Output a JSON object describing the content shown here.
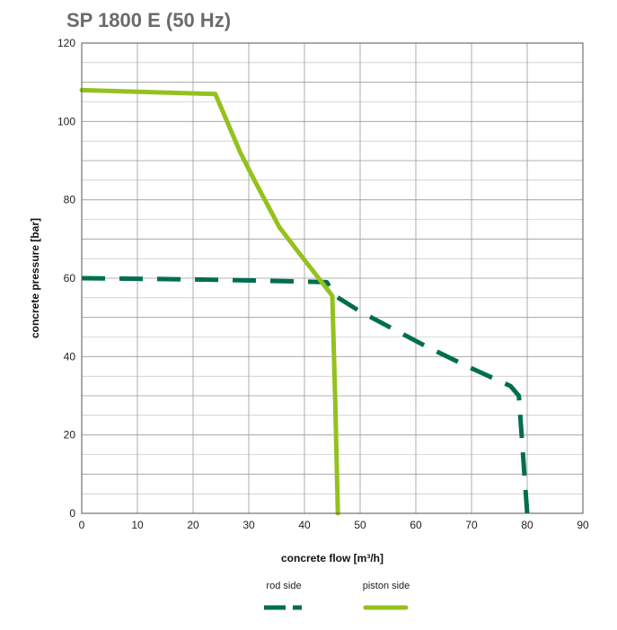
{
  "chart_data": {
    "type": "line",
    "title": "SP 1800 E (50 Hz)",
    "xlabel": "concrete flow [m³/h]",
    "ylabel": "concrete pressure [bar]",
    "xlim": [
      0,
      90
    ],
    "ylim": [
      0,
      120
    ],
    "x_ticks": [
      0,
      10,
      20,
      30,
      40,
      50,
      60,
      70,
      80,
      90
    ],
    "y_ticks": [
      0,
      20,
      40,
      60,
      80,
      100,
      120
    ],
    "grid": true,
    "legend_position": "bottom",
    "series": [
      {
        "name": "rod side",
        "style": "dashed",
        "color": "#006e4f",
        "points": [
          [
            0,
            60
          ],
          [
            14,
            59.8
          ],
          [
            24,
            59.6
          ],
          [
            35,
            59.3
          ],
          [
            44,
            59
          ],
          [
            45.5,
            55.5
          ],
          [
            50,
            51.5
          ],
          [
            56,
            47
          ],
          [
            62,
            42.5
          ],
          [
            70,
            37
          ],
          [
            77,
            32.5
          ],
          [
            78.5,
            30
          ],
          [
            79,
            20
          ],
          [
            79.5,
            10
          ],
          [
            80,
            0
          ]
        ]
      },
      {
        "name": "piston side",
        "style": "solid",
        "color": "#95c11f",
        "points": [
          [
            0,
            108
          ],
          [
            24,
            107
          ],
          [
            28.5,
            92
          ],
          [
            31,
            85
          ],
          [
            35.5,
            73
          ],
          [
            39,
            66.5
          ],
          [
            42,
            61
          ],
          [
            45,
            55.5
          ],
          [
            45.5,
            30
          ],
          [
            46,
            0
          ]
        ]
      }
    ]
  }
}
